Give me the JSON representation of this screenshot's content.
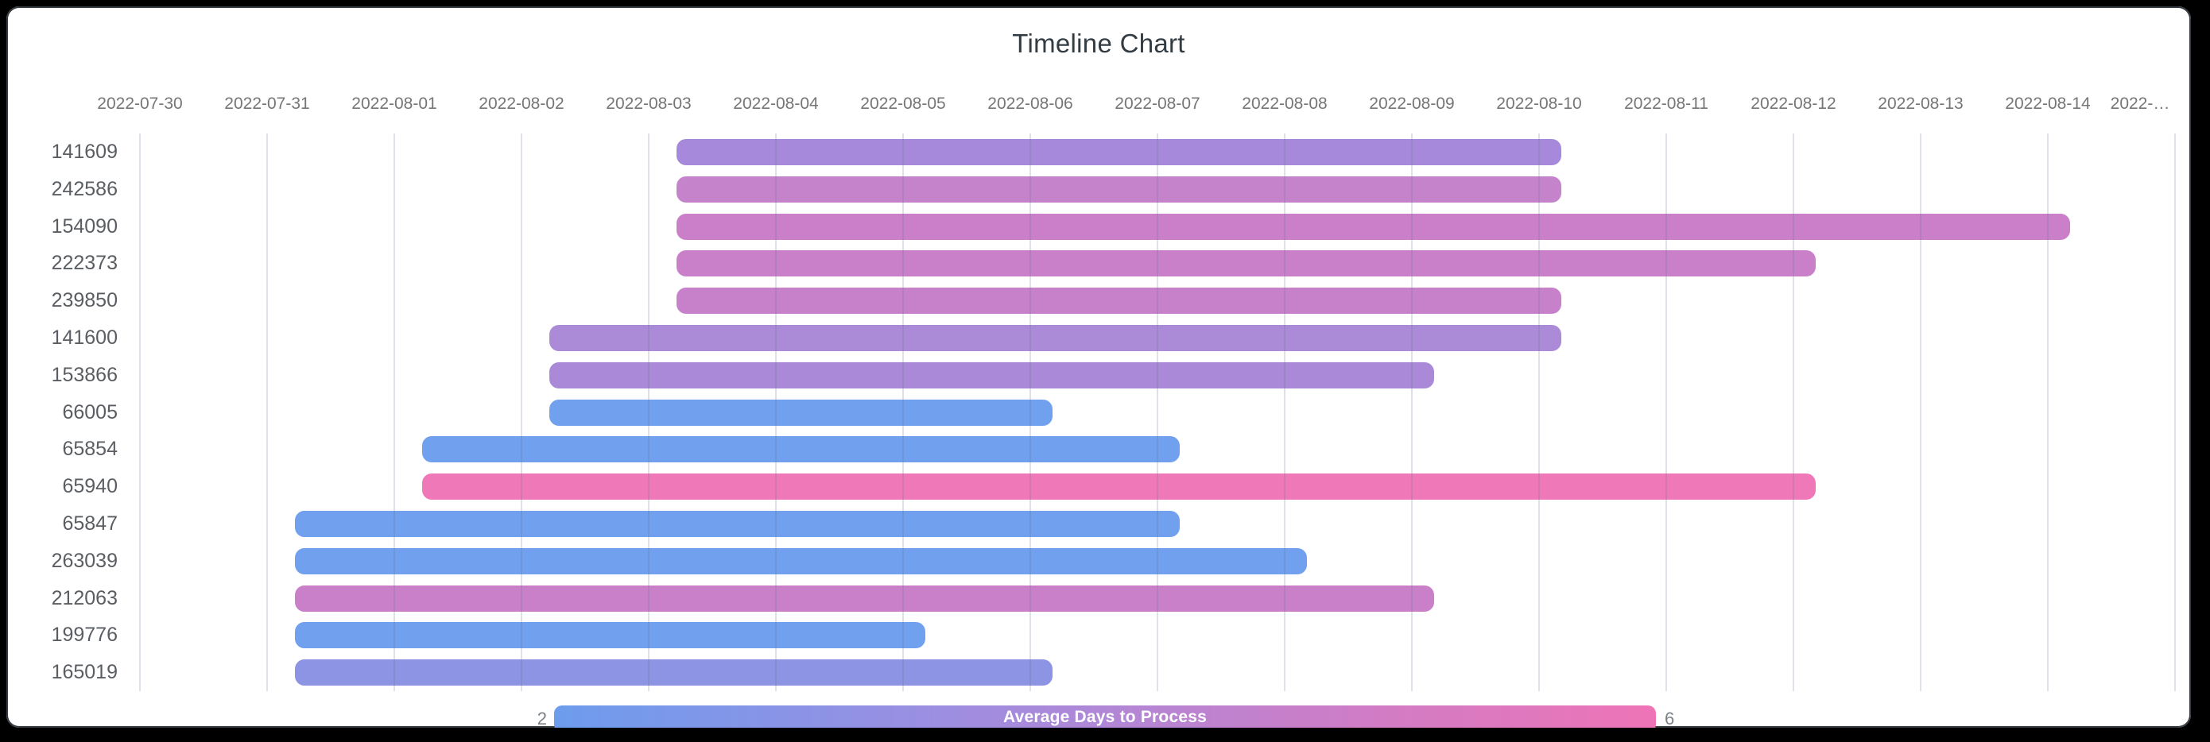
{
  "chart_data": {
    "type": "timeline",
    "title": "Timeline Chart",
    "x_axis": {
      "tick_dates": [
        "2022-07-30",
        "2022-07-31",
        "2022-08-01",
        "2022-08-02",
        "2022-08-03",
        "2022-08-04",
        "2022-08-05",
        "2022-08-06",
        "2022-08-07",
        "2022-08-08",
        "2022-08-09",
        "2022-08-10",
        "2022-08-11",
        "2022-08-12",
        "2022-08-13",
        "2022-08-14"
      ],
      "overflow_tick_label": "2022-…",
      "tick_color": "#767679",
      "gridlines": true
    },
    "y_axis_label_color": "#5a5e62",
    "tasks": [
      {
        "label": "141609",
        "start": "2022-08-03",
        "end": "2022-08-10",
        "duration_days": 7,
        "color": "#a689da"
      },
      {
        "label": "242586",
        "start": "2022-08-03",
        "end": "2022-08-10",
        "duration_days": 7,
        "color": "#c583cc"
      },
      {
        "label": "154090",
        "start": "2022-08-03",
        "end": "2022-08-14",
        "duration_days": 11,
        "color": "#ca7fc8"
      },
      {
        "label": "222373",
        "start": "2022-08-03",
        "end": "2022-08-12",
        "duration_days": 9,
        "color": "#ca80c9"
      },
      {
        "label": "239850",
        "start": "2022-08-03",
        "end": "2022-08-10",
        "duration_days": 7,
        "color": "#c781cb"
      },
      {
        "label": "141600",
        "start": "2022-08-02",
        "end": "2022-08-10",
        "duration_days": 8,
        "color": "#ab8bd8"
      },
      {
        "label": "153866",
        "start": "2022-08-02",
        "end": "2022-08-09",
        "duration_days": 7,
        "color": "#aa8ad8"
      },
      {
        "label": "66005",
        "start": "2022-08-02",
        "end": "2022-08-06",
        "duration_days": 4,
        "color": "#70a0ee"
      },
      {
        "label": "65854",
        "start": "2022-08-01",
        "end": "2022-08-07",
        "duration_days": 6,
        "color": "#70a0ee"
      },
      {
        "label": "65940",
        "start": "2022-08-01",
        "end": "2022-08-12",
        "duration_days": 11,
        "color": "#ef79b8"
      },
      {
        "label": "65847",
        "start": "2022-07-31",
        "end": "2022-08-07",
        "duration_days": 7,
        "color": "#70a0ee"
      },
      {
        "label": "263039",
        "start": "2022-07-31",
        "end": "2022-08-08",
        "duration_days": 8,
        "color": "#70a0ee"
      },
      {
        "label": "212063",
        "start": "2022-07-31",
        "end": "2022-08-09",
        "duration_days": 9,
        "color": "#ca80c9"
      },
      {
        "label": "199776",
        "start": "2022-07-31",
        "end": "2022-08-05",
        "duration_days": 5,
        "color": "#70a0ee"
      },
      {
        "label": "165019",
        "start": "2022-07-31",
        "end": "2022-08-06",
        "duration_days": 6,
        "color": "#8d94e4"
      }
    ],
    "legend": {
      "label": "Average Days to Process",
      "min": "2",
      "max": "6",
      "position": "bottom",
      "gradient": [
        "#6d9ced",
        "#9a8fe2",
        "#c77fca",
        "#ee74b6"
      ]
    }
  }
}
